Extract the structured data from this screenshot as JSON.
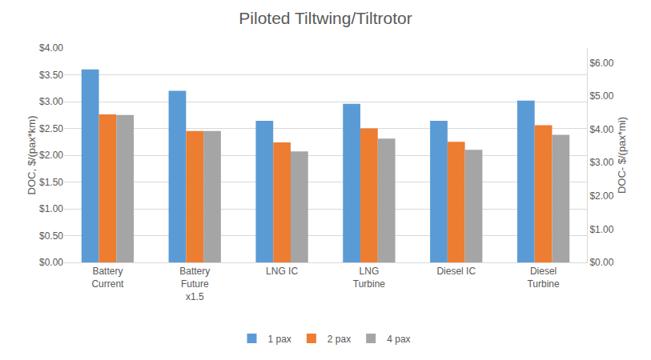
{
  "chart_data": {
    "type": "bar",
    "title": "Piloted Tiltwing/Tiltrotor",
    "y_label": "DOC, $/(pax*km)",
    "y2_label": "DOC- $/(pax*mi)",
    "categories": [
      "Battery Current",
      "Battery Future x1.5",
      "LNG IC",
      "LNG Turbine",
      "Diesel IC",
      "Diesel Turbine"
    ],
    "series": [
      {
        "name": "1 pax",
        "color": "#5B9BD5",
        "values": [
          3.6,
          3.2,
          2.64,
          2.96,
          2.64,
          3.02
        ]
      },
      {
        "name": "2 pax",
        "color": "#ED7D31",
        "values": [
          2.76,
          2.45,
          2.24,
          2.5,
          2.25,
          2.56
        ]
      },
      {
        "name": "4 pax",
        "color": "#A5A5A5",
        "values": [
          2.75,
          2.45,
          2.07,
          2.31,
          2.1,
          2.38
        ]
      }
    ],
    "ylim": [
      0,
      4
    ],
    "yticks": [
      {
        "value": 0,
        "label": "$0.00"
      },
      {
        "value": 0.5,
        "label": "$0.50"
      },
      {
        "value": 1,
        "label": "$1.00"
      },
      {
        "value": 1.5,
        "label": "$1.50"
      },
      {
        "value": 2,
        "label": "$2.00"
      },
      {
        "value": 2.5,
        "label": "$2.50"
      },
      {
        "value": 3,
        "label": "$3.00"
      },
      {
        "value": 3.5,
        "label": "$3.50"
      },
      {
        "value": 4,
        "label": "$4.00"
      }
    ],
    "y2lim": [
      0,
      6.44
    ],
    "y2ticks": [
      {
        "value": 0,
        "label": "$0.00"
      },
      {
        "value": 1,
        "label": "$1.00"
      },
      {
        "value": 2,
        "label": "$2.00"
      },
      {
        "value": 3,
        "label": "$3.00"
      },
      {
        "value": 4,
        "label": "$4.00"
      },
      {
        "value": 5,
        "label": "$5.00"
      },
      {
        "value": 6,
        "label": "$6.00"
      }
    ],
    "grid": true,
    "legend": "bottom"
  }
}
